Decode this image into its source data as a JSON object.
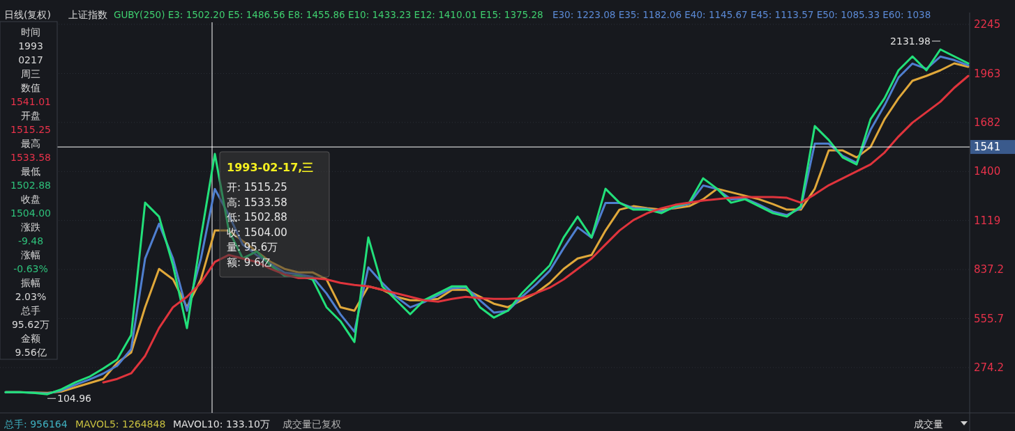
{
  "chart_data": {
    "type": "line",
    "title": "日线(复权)",
    "subtitle": "上证指数",
    "categories": [
      null,
      null,
      null,
      null,
      null,
      null,
      null,
      null,
      null,
      null,
      null,
      null,
      null,
      null,
      null,
      null,
      null,
      null,
      null,
      null,
      null,
      null,
      null,
      null,
      null,
      null,
      null,
      null,
      null,
      null,
      null,
      null,
      null,
      null,
      null,
      null,
      null,
      null,
      null,
      null,
      null,
      null,
      null,
      null,
      null,
      null,
      null,
      null,
      null,
      null,
      null,
      null,
      null,
      null,
      null,
      null,
      null,
      null,
      null,
      null,
      null,
      null,
      null,
      null,
      null,
      null,
      null,
      null,
      null,
      null
    ],
    "series": [
      {
        "color": "#e0a83a",
        "values": [
          133,
          133,
          131,
          129,
          137,
          161,
          185,
          209,
          301,
          361,
          621,
          841,
          781,
          621,
          781,
          1061,
          1061,
          1001,
          941,
          881,
          841,
          821,
          821,
          781,
          621,
          601,
          741,
          721,
          681,
          661,
          661,
          669,
          721,
          721,
          681,
          641,
          621,
          661,
          701,
          761,
          841,
          901,
          921,
          1061,
          1181,
          1201,
          1189,
          1181,
          1189,
          1201,
          1241,
          1301,
          1281,
          1261,
          1241,
          1213,
          1181,
          1181,
          1301,
          1521,
          1521,
          1481,
          1541,
          1701,
          1821,
          1921,
          1949,
          1981,
          2021,
          2001
        ]
      },
      {
        "color": "#4f7fd0",
        "values": [
          133,
          133,
          130,
          125,
          143,
          175,
          205,
          240,
          285,
          380,
          900,
          1100,
          900,
          600,
          900,
          1300,
          1150,
          980,
          920,
          870,
          820,
          810,
          795,
          700,
          580,
          480,
          850,
          760,
          680,
          620,
          650,
          690,
          730,
          735,
          660,
          590,
          600,
          680,
          750,
          830,
          960,
          1080,
          1020,
          1220,
          1220,
          1190,
          1185,
          1170,
          1195,
          1215,
          1320,
          1300,
          1240,
          1245,
          1210,
          1170,
          1150,
          1190,
          1560,
          1560,
          1490,
          1450,
          1640,
          1780,
          1940,
          2020,
          1990,
          2060,
          2040,
          2010
        ]
      },
      {
        "color": "#22e07a",
        "values": [
          133,
          133,
          129,
          121,
          149,
          189,
          221,
          269,
          321,
          461,
          1221,
          1141,
          861,
          501,
          1021,
          1501,
          1061,
          901,
          941,
          861,
          801,
          801,
          781,
          621,
          541,
          421,
          1021,
          741,
          661,
          581,
          661,
          701,
          741,
          741,
          621,
          561,
          601,
          701,
          781,
          861,
          1021,
          1141,
          1021,
          1301,
          1221,
          1181,
          1181,
          1161,
          1201,
          1221,
          1361,
          1301,
          1221,
          1241,
          1201,
          1161,
          1141,
          1201,
          1661,
          1581,
          1481,
          1441,
          1701,
          1821,
          1981,
          2061,
          1981,
          2101,
          2061,
          2021
        ]
      },
      {
        "color": "#e0343c",
        "values": [
          null,
          null,
          null,
          null,
          null,
          null,
          null,
          189,
          209,
          241,
          341,
          501,
          621,
          681,
          761,
          881,
          921,
          901,
          881,
          841,
          809,
          789,
          789,
          781,
          761,
          749,
          741,
          721,
          701,
          681,
          661,
          653,
          669,
          681,
          673,
          669,
          669,
          673,
          701,
          733,
          781,
          841,
          901,
          981,
          1061,
          1121,
          1161,
          1189,
          1209,
          1221,
          1233,
          1241,
          1249,
          1253,
          1253,
          1253,
          1249,
          1221,
          1269,
          1321,
          1361,
          1401,
          1441,
          1509,
          1601,
          1681,
          1741,
          1801,
          1881,
          1949
        ]
      }
    ],
    "ylim": [
      14,
      2313
    ],
    "yticks": [
      2245,
      1963,
      1682,
      1400,
      1119,
      837.2,
      555.7,
      274.2
    ],
    "grid": "y",
    "ref_lines": [
      {
        "axis": "y",
        "value": 1541,
        "label": "1541",
        "color": "#ffffff"
      }
    ],
    "annotations": [
      "GUBY(250) E3: 1502.20 E5: 1486.56 E8: 1455.86 E10: 1433.23 E12: 1410.01 E15: 1375.28",
      "E30: 1223.08 E35: 1182.06 E40: 1145.67 E45: 1113.57 E50: 1085.33 E60: 1038",
      "时间",
      "1993",
      "0217",
      "周三",
      "数值",
      "1541.01",
      "开盘",
      "1515.25",
      "最高",
      "1533.58",
      "最低",
      "1502.88",
      "收盘",
      "1504.00",
      "涨跌",
      "-9.48",
      "涨幅",
      "-0.63%",
      "振幅",
      "2.03%",
      "总手",
      "95.62万",
      "金额",
      "9.56亿",
      "1993-02-17,三",
      "开: 1515.25",
      "高: 1533.58",
      "低: 1502.88",
      "收: 1504.00",
      "量: 95.6万",
      "额: 9.6亿",
      "总手: 956164",
      "MAVOL5: 1264848",
      "MAVOL10: 133.10万",
      "成交量已复权",
      "成交量",
      "2131.98",
      "104.96"
    ]
  }
}
